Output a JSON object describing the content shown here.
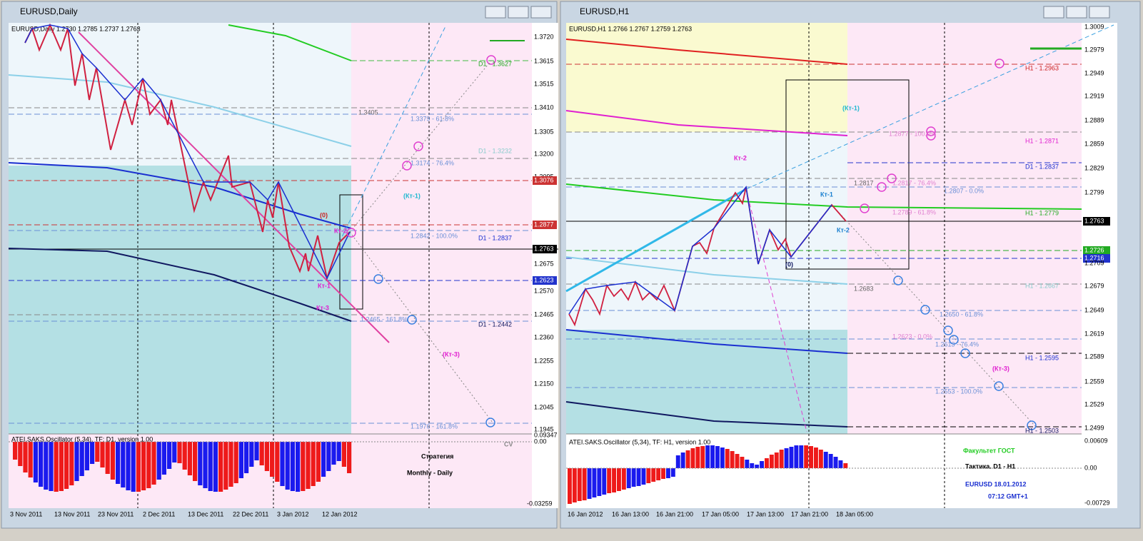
{
  "left": {
    "title": "EURUSD,Daily",
    "info": "EURUSD,Daily  1.2730 1.2785 1.2737 1.2763",
    "price_labels": [
      "1.3720",
      "1.3615",
      "1.3515",
      "1.3410",
      "1.3305",
      "1.3200",
      "1.3095",
      "1.3076",
      "1.2877",
      "1.2763",
      "1.2675",
      "1.2623",
      "1.2570",
      "1.2465",
      "1.2360",
      "1.2255",
      "1.2150",
      "1.2045",
      "1.1945"
    ],
    "dates": [
      "3 Nov 2011",
      "13 Nov 2011",
      "23 Nov 2011",
      "2 Dec 2011",
      "13 Dec 2011",
      "22 Dec 2011",
      "3 Jan 2012",
      "12 Jan 2012"
    ],
    "annotations": [
      "1.3405",
      "1.3379 - 61.8%",
      "D1 - 1.3627",
      "D1 - 1.3232",
      "1.3174 - 76.4%",
      "(Кт-1)",
      "(0)",
      "Кт-2",
      "1.2842 - 100.0%",
      "D1 - 1.2837",
      "Кт-1",
      "Кт-3",
      "1.2465 - 161.8%",
      "D1 - 1.2442",
      "(Кт-3)",
      "1.1976 - 161.8%",
      "Стратегия",
      "Monthly - Daily",
      "CV"
    ],
    "osc_title": "ATEI.SAKS.Oscillator (5,34), TF: D1, version 1.00",
    "osc_labels": [
      "0.09347",
      "0.00",
      "-0.03259"
    ]
  },
  "right": {
    "title": "EURUSD,H1",
    "info": "EURUSD,H1  1.2766 1.2767 1.2759 1.2763",
    "price_labels": [
      "1.3009",
      "1.2979",
      "1.2949",
      "1.2919",
      "1.2889",
      "1.2859",
      "1.2829",
      "1.2799",
      "1.2763",
      "1.2726",
      "1.2716",
      "1.2709",
      "1.2679",
      "1.2649",
      "1.2619",
      "1.2589",
      "1.2559",
      "1.2529",
      "1.2499"
    ],
    "dates": [
      "16 Jan 2012",
      "16 Jan 13:00",
      "16 Jan 21:00",
      "17 Jan 05:00",
      "17 Jan 13:00",
      "17 Jan 21:00",
      "18 Jan 05:00"
    ],
    "annotations": [
      "H1 - 1.2963",
      "(Кт-1)",
      "1.2877 - 100.0%",
      "H1 - 1.2871",
      "Кт-2",
      "D1 - 1.2837",
      "1.2817",
      "1.2817 - 76.4%",
      "1.2807 - 0.0%",
      "Кт-1",
      "1.2789 - 61.8%",
      "H1 - 1.2779",
      "Кт-2",
      "(0)",
      "1.2683",
      "H1 - 1.2667",
      "1.2650 - 61.8%",
      "1.2623 - 0.0%",
      "1.2613 - 76.4%",
      "H1 - 1.2595",
      "(Кт-3)",
      "1.2553 - 100.0%",
      "H1 - 1.2503",
      "Факультет ГОСТ",
      "Тактика. D1 - H1",
      "EURUSD 18.01.2012",
      "07:12 GMT+1"
    ],
    "osc_title": "ATEI.SAKS.Oscillator (5,34), TF: H1, version 1.00",
    "osc_labels": [
      "0.00609",
      "0.00",
      "-0.00729"
    ]
  }
}
